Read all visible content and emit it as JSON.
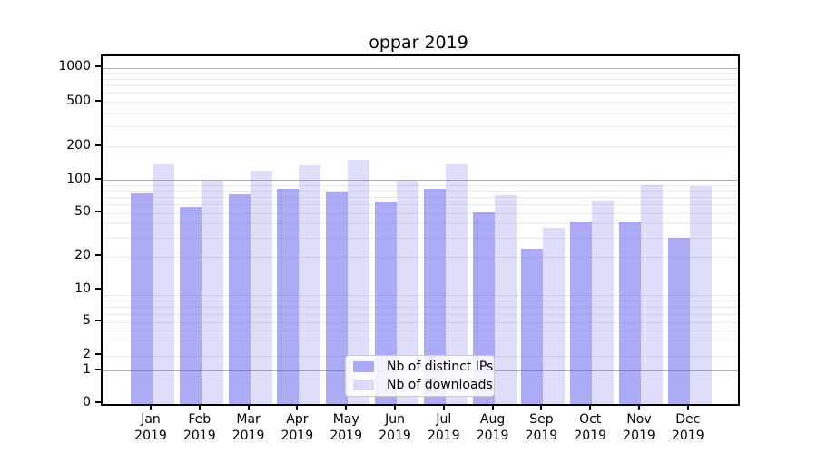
{
  "figure": {
    "title": "oppar 2019",
    "background": "#ffffff"
  },
  "chart_data": {
    "type": "bar",
    "title": "oppar 2019",
    "yscale": "symlog",
    "ylim": [
      0,
      1000
    ],
    "grid": "on (major darker, minor faint)",
    "y_ticks": [
      0,
      1,
      2,
      5,
      10,
      20,
      50,
      100,
      200,
      500,
      1000
    ],
    "y_major_gridlines": [
      1,
      10,
      100,
      1000
    ],
    "y_minor_gridlines": [
      2,
      3,
      4,
      5,
      6,
      7,
      8,
      9,
      20,
      30,
      40,
      50,
      60,
      70,
      80,
      90,
      200,
      300,
      400,
      500,
      600,
      700,
      800,
      900
    ],
    "categories": [
      "Jan 2019",
      "Feb 2019",
      "Mar 2019",
      "Apr 2019",
      "May 2019",
      "Jun 2019",
      "Jul 2019",
      "Aug 2019",
      "Sep 2019",
      "Oct 2019",
      "Nov 2019",
      "Dec 2019"
    ],
    "x_tick_months": [
      "Jan",
      "Feb",
      "Mar",
      "Apr",
      "May",
      "Jun",
      "Jul",
      "Aug",
      "Sep",
      "Oct",
      "Nov",
      "Dec"
    ],
    "x_tick_year": "2019",
    "series": [
      {
        "name": "Nb of distinct IPs",
        "fill": "rgba(70,70,235,0.45)",
        "fill_hex_on_white": "#a9a9f5",
        "values": [
          76,
          57,
          75,
          84,
          79,
          64,
          84,
          51,
          24,
          42,
          42,
          30
        ]
      },
      {
        "name": "Nb of downloads",
        "fill": "rgba(70,70,235,0.18)",
        "fill_hex_on_white": "#dcdcf8",
        "values": [
          138,
          100,
          122,
          137,
          152,
          100,
          138,
          74,
          37,
          66,
          90,
          88
        ]
      }
    ],
    "legend_position": "lower center"
  },
  "colors": {
    "axis": "#000000",
    "major_grid": "#b0b0b0",
    "minor_grid": "#ebebeb",
    "legend_border": "#cccccc",
    "text": "#000000"
  }
}
